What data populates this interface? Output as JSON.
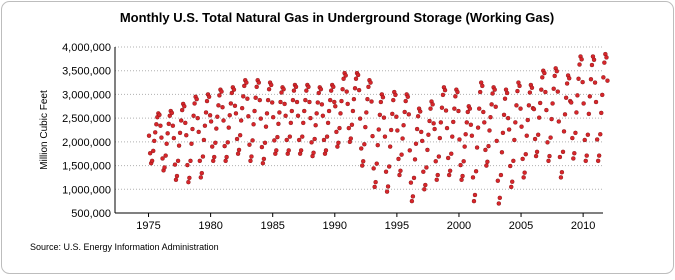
{
  "chart_data": {
    "type": "scatter",
    "title": "Monthly U.S. Total Natural Gas in Underground Storage (Working Gas)",
    "y_label": "Million Cubic Feet",
    "source": "Source: U.S. Energy Information Administration",
    "color": "#d7262b",
    "grid": true,
    "xlim": [
      1972.3,
      2011.6
    ],
    "xticks": [
      1975,
      1980,
      1985,
      1990,
      1995,
      2000,
      2005,
      2010
    ],
    "ylim": [
      500000,
      4000000
    ],
    "yticks": [
      {
        "value": 500000,
        "label": "500,000"
      },
      {
        "value": 1000000,
        "label": "1,000,000"
      },
      {
        "value": 1500000,
        "label": "1,500,000"
      },
      {
        "value": 2000000,
        "label": "2,000,000"
      },
      {
        "value": 2500000,
        "label": "2,500,000"
      },
      {
        "value": 3000000,
        "label": "3,000,000"
      },
      {
        "value": 3500000,
        "label": "3,500,000"
      },
      {
        "value": 4000000,
        "label": "4,000,000"
      }
    ],
    "x": [
      1975.04,
      1975.13,
      1975.21,
      1975.29,
      1975.38,
      1975.46,
      1975.54,
      1975.63,
      1975.71,
      1975.79,
      1975.88,
      1975.96,
      1976.04,
      1976.13,
      1976.21,
      1976.29,
      1976.38,
      1976.46,
      1976.54,
      1976.63,
      1976.71,
      1976.79,
      1976.88,
      1976.96,
      1977.04,
      1977.13,
      1977.21,
      1977.29,
      1977.38,
      1977.46,
      1977.54,
      1977.63,
      1977.71,
      1977.79,
      1977.88,
      1977.96,
      1978.04,
      1978.13,
      1978.21,
      1978.29,
      1978.38,
      1978.46,
      1978.54,
      1978.63,
      1978.71,
      1978.79,
      1978.88,
      1978.96,
      1979.04,
      1979.13,
      1979.21,
      1979.29,
      1979.38,
      1979.46,
      1979.54,
      1979.63,
      1979.71,
      1979.79,
      1979.88,
      1979.96,
      1980.04,
      1980.13,
      1980.21,
      1980.29,
      1980.38,
      1980.46,
      1980.54,
      1980.63,
      1980.71,
      1980.79,
      1980.88,
      1980.96,
      1981.04,
      1981.13,
      1981.21,
      1981.29,
      1981.38,
      1981.46,
      1981.54,
      1981.63,
      1981.71,
      1981.79,
      1981.88,
      1981.96,
      1982.04,
      1982.13,
      1982.21,
      1982.29,
      1982.38,
      1982.46,
      1982.54,
      1982.63,
      1982.71,
      1982.79,
      1982.88,
      1982.96,
      1983.04,
      1983.13,
      1983.21,
      1983.29,
      1983.38,
      1983.46,
      1983.54,
      1983.63,
      1983.71,
      1983.79,
      1983.88,
      1983.96,
      1984.04,
      1984.13,
      1984.21,
      1984.29,
      1984.38,
      1984.46,
      1984.54,
      1984.63,
      1984.71,
      1984.79,
      1984.88,
      1984.96,
      1985.04,
      1985.13,
      1985.21,
      1985.29,
      1985.38,
      1985.46,
      1985.54,
      1985.63,
      1985.71,
      1985.79,
      1985.88,
      1985.96,
      1986.04,
      1986.13,
      1986.21,
      1986.29,
      1986.38,
      1986.46,
      1986.54,
      1986.63,
      1986.71,
      1986.79,
      1986.88,
      1986.96,
      1987.04,
      1987.13,
      1987.21,
      1987.29,
      1987.38,
      1987.46,
      1987.54,
      1987.63,
      1987.71,
      1987.79,
      1987.88,
      1987.96,
      1988.04,
      1988.13,
      1988.21,
      1988.29,
      1988.38,
      1988.46,
      1988.54,
      1988.63,
      1988.71,
      1988.79,
      1988.88,
      1988.96,
      1989.04,
      1989.13,
      1989.21,
      1989.29,
      1989.38,
      1989.46,
      1989.54,
      1989.63,
      1989.71,
      1989.79,
      1989.88,
      1989.96,
      1990.04,
      1990.13,
      1990.21,
      1990.29,
      1990.38,
      1990.46,
      1990.54,
      1990.63,
      1990.71,
      1990.79,
      1990.88,
      1990.96,
      1991.04,
      1991.13,
      1991.21,
      1991.29,
      1991.38,
      1991.46,
      1991.54,
      1991.63,
      1991.71,
      1991.79,
      1991.88,
      1991.96,
      1992.04,
      1992.13,
      1992.21,
      1992.29,
      1992.38,
      1992.46,
      1992.54,
      1992.63,
      1992.71,
      1992.79,
      1992.88,
      1992.96,
      1993.04,
      1993.13,
      1993.21,
      1993.29,
      1993.38,
      1993.46,
      1993.54,
      1993.63,
      1993.71,
      1993.79,
      1993.88,
      1993.96,
      1994.04,
      1994.13,
      1994.21,
      1994.29,
      1994.38,
      1994.46,
      1994.54,
      1994.63,
      1994.71,
      1994.79,
      1994.88,
      1994.96,
      1995.04,
      1995.13,
      1995.21,
      1995.29,
      1995.38,
      1995.46,
      1995.54,
      1995.63,
      1995.71,
      1995.79,
      1995.88,
      1995.96,
      1996.04,
      1996.13,
      1996.21,
      1996.29,
      1996.38,
      1996.46,
      1996.54,
      1996.63,
      1996.71,
      1996.79,
      1996.88,
      1996.96,
      1997.04,
      1997.13,
      1997.21,
      1997.29,
      1997.38,
      1997.46,
      1997.54,
      1997.63,
      1997.71,
      1997.79,
      1997.88,
      1997.96,
      1998.04,
      1998.13,
      1998.21,
      1998.29,
      1998.38,
      1998.46,
      1998.54,
      1998.63,
      1998.71,
      1998.79,
      1998.88,
      1998.96,
      1999.04,
      1999.13,
      1999.21,
      1999.29,
      1999.38,
      1999.46,
      1999.54,
      1999.63,
      1999.71,
      1999.79,
      1999.88,
      1999.96,
      2000.04,
      2000.13,
      2000.21,
      2000.29,
      2000.38,
      2000.46,
      2000.54,
      2000.63,
      2000.71,
      2000.79,
      2000.88,
      2000.96,
      2001.04,
      2001.13,
      2001.21,
      2001.29,
      2001.38,
      2001.46,
      2001.54,
      2001.63,
      2001.71,
      2001.79,
      2001.88,
      2001.96,
      2002.04,
      2002.13,
      2002.21,
      2002.29,
      2002.38,
      2002.46,
      2002.54,
      2002.63,
      2002.71,
      2002.79,
      2002.88,
      2002.96,
      2003.04,
      2003.13,
      2003.21,
      2003.29,
      2003.38,
      2003.46,
      2003.54,
      2003.63,
      2003.71,
      2003.79,
      2003.88,
      2003.96,
      2004.04,
      2004.13,
      2004.21,
      2004.29,
      2004.38,
      2004.46,
      2004.54,
      2004.63,
      2004.71,
      2004.79,
      2004.88,
      2004.96,
      2005.04,
      2005.13,
      2005.21,
      2005.29,
      2005.38,
      2005.46,
      2005.54,
      2005.63,
      2005.71,
      2005.79,
      2005.88,
      2005.96,
      2006.04,
      2006.13,
      2006.21,
      2006.29,
      2006.38,
      2006.46,
      2006.54,
      2006.63,
      2006.71,
      2006.79,
      2006.88,
      2006.96,
      2007.04,
      2007.13,
      2007.21,
      2007.29,
      2007.38,
      2007.46,
      2007.54,
      2007.63,
      2007.71,
      2007.79,
      2007.88,
      2007.96,
      2008.04,
      2008.13,
      2008.21,
      2008.29,
      2008.38,
      2008.46,
      2008.54,
      2008.63,
      2008.71,
      2008.79,
      2008.88,
      2008.96,
      2009.04,
      2009.13,
      2009.21,
      2009.29,
      2009.38,
      2009.46,
      2009.54,
      2009.63,
      2009.71,
      2009.79,
      2009.88,
      2009.96,
      2010.04,
      2010.13,
      2010.21,
      2010.29,
      2010.38,
      2010.46,
      2010.54,
      2010.63,
      2010.71,
      2010.79,
      2010.88,
      2010.96,
      2011.04,
      2011.13,
      2011.21,
      2011.29,
      2011.38,
      2011.46,
      2011.54,
      2011.63,
      2011.71,
      2011.79,
      2011.88,
      2011.96
    ],
    "values": [
      2130000,
      1760000,
      1550000,
      1600000,
      1810000,
      2020000,
      2200000,
      2370000,
      2520000,
      2600000,
      2570000,
      2340000,
      2090000,
      1650000,
      1400000,
      1460000,
      1710000,
      1960000,
      2180000,
      2380000,
      2550000,
      2650000,
      2610000,
      2340000,
      2080000,
      1520000,
      1200000,
      1280000,
      1600000,
      1920000,
      2190000,
      2450000,
      2670000,
      2800000,
      2750000,
      2400000,
      2140000,
      1510000,
      1150000,
      1240000,
      1600000,
      1960000,
      2270000,
      2550000,
      2810000,
      2950000,
      2900000,
      2500000,
      2210000,
      1600000,
      1250000,
      1340000,
      1690000,
      2040000,
      2340000,
      2620000,
      2860000,
      3000000,
      2950000,
      2560000,
      2430000,
      1900000,
      1600000,
      1680000,
      1980000,
      2280000,
      2530000,
      2770000,
      2980000,
      3100000,
      3060000,
      2730000,
      2450000,
      1910000,
      1600000,
      1680000,
      1990000,
      2300000,
      2560000,
      2810000,
      3030000,
      3150000,
      3100000,
      2760000,
      2600000,
      2060000,
      1750000,
      1830000,
      2140000,
      2450000,
      2710000,
      2960000,
      3180000,
      3300000,
      3250000,
      2910000,
      2540000,
      1940000,
      1600000,
      1690000,
      2030000,
      2370000,
      2650000,
      2930000,
      3160000,
      3300000,
      3250000,
      2880000,
      2490000,
      1890000,
      1550000,
      1640000,
      1980000,
      2320000,
      2600000,
      2880000,
      3110000,
      3250000,
      3200000,
      2830000,
      2520000,
      2030000,
      1750000,
      1820000,
      2100000,
      2380000,
      2620000,
      2840000,
      3040000,
      3150000,
      3110000,
      2800000,
      2550000,
      2040000,
      1750000,
      1820000,
      2110000,
      2400000,
      2650000,
      2880000,
      3080000,
      3200000,
      3160000,
      2840000,
      2550000,
      2040000,
      1750000,
      1820000,
      2110000,
      2400000,
      2650000,
      2880000,
      3080000,
      3200000,
      3160000,
      2840000,
      2500000,
      1990000,
      1700000,
      1770000,
      2060000,
      2350000,
      2600000,
      2830000,
      3030000,
      3150000,
      3110000,
      2790000,
      2550000,
      2040000,
      1750000,
      1820000,
      2110000,
      2400000,
      2650000,
      2880000,
      3080000,
      3200000,
      3160000,
      2840000,
      2750000,
      2210000,
      1900000,
      1980000,
      2290000,
      2600000,
      2860000,
      3110000,
      3330000,
      3450000,
      3400000,
      3060000,
      2800000,
      2290000,
      2000000,
      2070000,
      2360000,
      2650000,
      2900000,
      3130000,
      3330000,
      3450000,
      3410000,
      3090000,
      2490000,
      1860000,
      1500000,
      1590000,
      1950000,
      2310000,
      2620000,
      2900000,
      3160000,
      3300000,
      3250000,
      2850000,
      2120000,
      1440000,
      1050000,
      1150000,
      1540000,
      1930000,
      2260000,
      2570000,
      2840000,
      3000000,
      2940000,
      2510000,
      2110000,
      1370000,
      950000,
      1060000,
      1480000,
      1900000,
      2250000,
      2590000,
      2880000,
      3050000,
      2990000,
      2530000,
      2240000,
      1640000,
      1300000,
      1390000,
      1730000,
      2070000,
      2350000,
      2630000,
      2860000,
      3000000,
      2950000,
      2580000,
      1820000,
      1140000,
      750000,
      850000,
      1240000,
      1630000,
      1960000,
      2270000,
      2540000,
      2700000,
      2640000,
      2210000,
      2020000,
      1370000,
      1000000,
      1090000,
      1460000,
      1830000,
      2150000,
      2440000,
      2700000,
      2850000,
      2790000,
      2390000,
      2270000,
      1590000,
      1200000,
      1300000,
      1690000,
      2080000,
      2410000,
      2720000,
      2990000,
      3150000,
      3090000,
      2660000,
      2290000,
      1660000,
      1300000,
      1390000,
      1750000,
      2110000,
      2420000,
      2700000,
      2960000,
      3100000,
      3050000,
      2650000,
      2050000,
      1510000,
      1200000,
      1280000,
      1590000,
      1900000,
      2160000,
      2410000,
      2630000,
      2750000,
      2700000,
      2360000,
      2130000,
      1250000,
      750000,
      880000,
      1380000,
      1880000,
      2300000,
      2700000,
      3050000,
      3250000,
      3180000,
      2630000,
      2410000,
      1830000,
      1500000,
      1580000,
      1910000,
      2240000,
      2520000,
      2790000,
      3020000,
      3150000,
      3100000,
      2740000,
      2020000,
      1180000,
      700000,
      820000,
      1300000,
      1780000,
      2190000,
      2570000,
      2910000,
      3100000,
      3030000,
      2500000,
      2260000,
      1490000,
      1050000,
      1160000,
      1600000,
      2040000,
      2410000,
      2770000,
      3070000,
      3250000,
      3180000,
      2700000,
      2320000,
      1640000,
      1250000,
      1350000,
      1740000,
      2130000,
      2460000,
      2770000,
      3040000,
      3200000,
      3140000,
      2710000,
      2690000,
      2060000,
      1700000,
      1790000,
      2150000,
      2510000,
      2820000,
      3100000,
      3360000,
      3500000,
      3450000,
      3050000,
      2670000,
      1990000,
      1600000,
      1700000,
      2090000,
      2480000,
      2810000,
      3120000,
      3390000,
      3550000,
      3490000,
      3060000,
      2430000,
      1680000,
      1250000,
      1360000,
      1790000,
      2220000,
      2580000,
      2930000,
      3230000,
      3400000,
      3340000,
      2860000,
      2830000,
      2080000,
      1650000,
      1760000,
      2190000,
      2620000,
      2980000,
      3330000,
      3630000,
      3800000,
      3740000,
      3260000,
      2810000,
      2040000,
      1600000,
      1710000,
      2150000,
      2590000,
      2960000,
      3320000,
      3620000,
      3800000,
      3730000,
      3250000,
      2840000,
      2050000,
      1600000,
      1710000,
      2160000,
      2610000,
      2990000,
      3360000,
      3670000,
      3850000,
      3780000,
      3290000
    ]
  }
}
